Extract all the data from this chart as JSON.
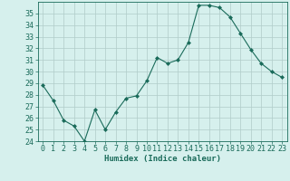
{
  "x": [
    0,
    1,
    2,
    3,
    4,
    5,
    6,
    7,
    8,
    9,
    10,
    11,
    12,
    13,
    14,
    15,
    16,
    17,
    18,
    19,
    20,
    21,
    22,
    23
  ],
  "y": [
    28.8,
    27.5,
    25.8,
    25.3,
    24.0,
    26.7,
    25.0,
    26.5,
    27.7,
    27.9,
    29.2,
    31.2,
    30.7,
    31.0,
    32.5,
    35.7,
    35.7,
    35.5,
    34.7,
    33.3,
    31.9,
    30.7,
    30.0,
    29.5
  ],
  "line_color": "#1a6b5a",
  "marker": "D",
  "marker_size": 2.0,
  "bg_color": "#d6f0ed",
  "grid_color": "#b0ccc9",
  "xlabel": "Humidex (Indice chaleur)",
  "ylim": [
    24,
    36
  ],
  "yticks": [
    24,
    25,
    26,
    27,
    28,
    29,
    30,
    31,
    32,
    33,
    34,
    35
  ],
  "xticks": [
    0,
    1,
    2,
    3,
    4,
    5,
    6,
    7,
    8,
    9,
    10,
    11,
    12,
    13,
    14,
    15,
    16,
    17,
    18,
    19,
    20,
    21,
    22,
    23
  ],
  "xlabel_fontsize": 6.5,
  "tick_fontsize": 6.0,
  "linewidth": 0.8
}
